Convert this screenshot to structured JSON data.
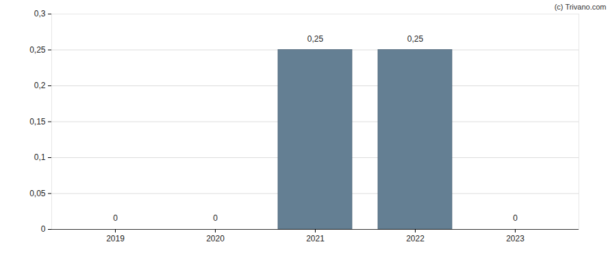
{
  "chart_data": {
    "type": "bar",
    "source": "(c) Trivano.com",
    "categories": [
      "2019",
      "2020",
      "2021",
      "2022",
      "2023"
    ],
    "values": [
      0,
      0,
      0.25,
      0.25,
      0
    ],
    "value_labels": [
      "0",
      "0",
      "0,25",
      "0,25",
      "0"
    ],
    "data_labels": true,
    "color": "#647f93",
    "ylim": [
      0,
      0.3
    ],
    "yticks": [
      0,
      {
        "value": 0.05,
        "label": "0,05"
      },
      {
        "value": 0.1,
        "label": "0,1"
      },
      {
        "value": 0.15,
        "label": "0,15"
      },
      {
        "value": 0.2,
        "label": "0,2"
      },
      {
        "value": 0.25,
        "label": "0,25"
      },
      {
        "value": 0.3,
        "label": "0,3"
      }
    ],
    "grid": true
  }
}
